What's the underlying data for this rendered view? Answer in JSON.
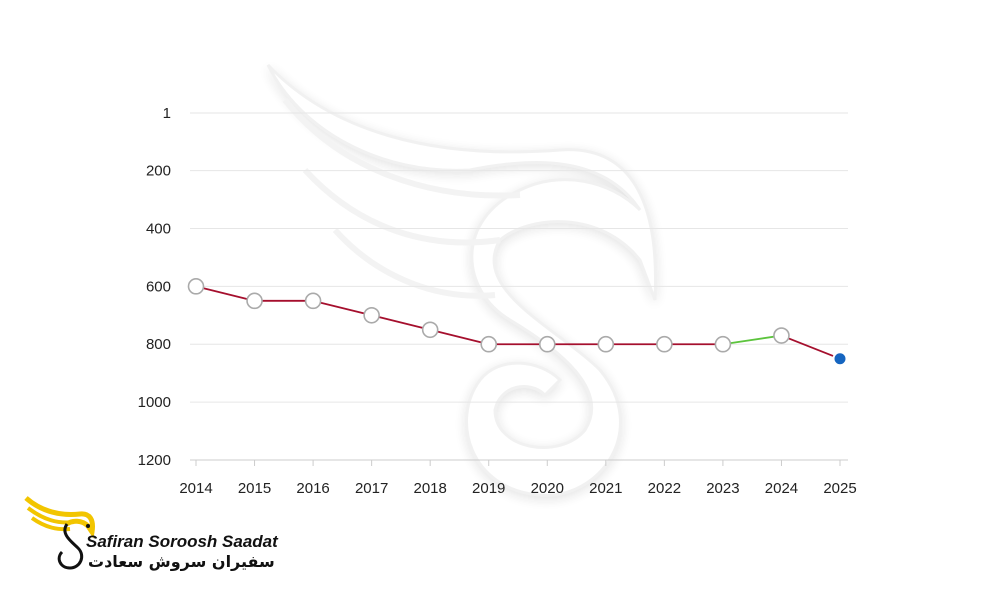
{
  "brand": {
    "name_en": "Safiran Soroosh Saadat",
    "name_fa": "سفیران سروش سعادت"
  },
  "chart_data": {
    "type": "line",
    "title": "",
    "xlabel": "",
    "ylabel": "",
    "categories": [
      "2014",
      "2015",
      "2016",
      "2017",
      "2018",
      "2019",
      "2020",
      "2021",
      "2022",
      "2023",
      "2024",
      "2025"
    ],
    "values": [
      600,
      650,
      650,
      700,
      750,
      800,
      800,
      800,
      800,
      800,
      770,
      850
    ],
    "y_axis_inverted": true,
    "ylim": [
      1,
      1200
    ],
    "y_ticks": [
      1,
      200,
      400,
      600,
      800,
      1000,
      1200
    ],
    "grid": true,
    "legend": "none",
    "colors": {
      "segment_worse": "#a50f2d",
      "segment_better": "#5cc43d",
      "marker_fill": "#ffffff",
      "marker_stroke": "#aaaaaa",
      "last_marker": "#1565c0",
      "grid": "#e6e6e6",
      "axis": "#cccccc"
    }
  }
}
